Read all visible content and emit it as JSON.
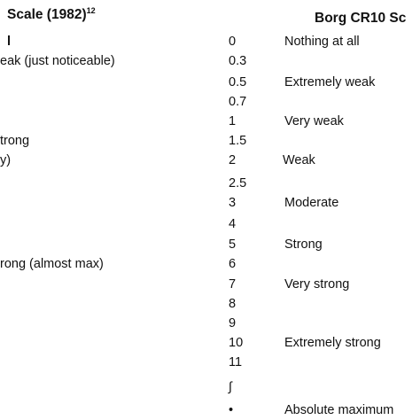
{
  "left": {
    "title": "Scale (1982)",
    "title_ref": "12"
  },
  "right": {
    "title": "Borg CR10 Sc",
    "rows": [
      {
        "rating": "0",
        "descriptor": "Nothing at all",
        "left": "l"
      },
      {
        "rating": "0.3",
        "left": "eak (just noticeable)"
      },
      {
        "rating": "0.5",
        "descriptor": "Extremely weak"
      },
      {
        "rating": "0.7"
      },
      {
        "rating": "1",
        "descriptor": "Very weak"
      },
      {
        "rating": "1.5",
        "left": "trong"
      },
      {
        "rating": "2",
        "descriptor": "Weak",
        "left": "y)"
      },
      {
        "rating": "2.5"
      },
      {
        "rating": "3",
        "descriptor": "Moderate"
      },
      {
        "rating": "4"
      },
      {
        "rating": "5",
        "descriptor": "Strong"
      },
      {
        "rating": "6",
        "left": "rong (almost max)"
      },
      {
        "rating": "7",
        "descriptor": "Very strong"
      },
      {
        "rating": "8"
      },
      {
        "rating": "9"
      },
      {
        "rating": "10",
        "descriptor": "Extremely strong"
      },
      {
        "rating": "11"
      },
      {
        "rating": "∫"
      },
      {
        "rating": "•",
        "descriptor": "Absolute maximum"
      }
    ]
  }
}
